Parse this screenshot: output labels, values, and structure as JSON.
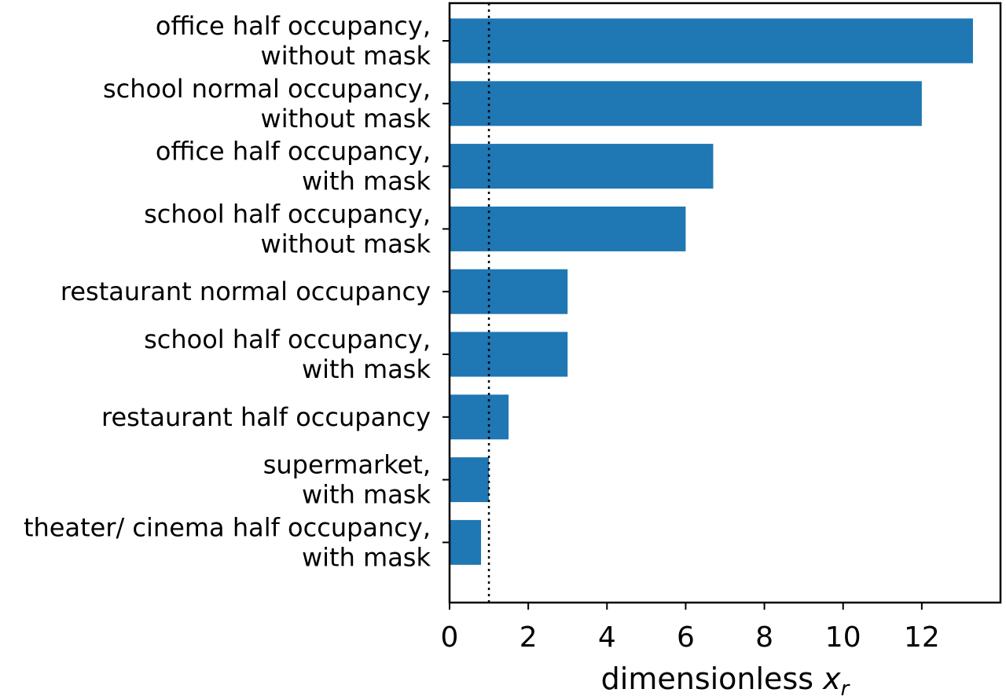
{
  "chart_data": {
    "type": "bar",
    "orientation": "horizontal",
    "categories": [
      [
        "office half occupancy,",
        "without mask"
      ],
      [
        "school normal occupancy,",
        "without mask"
      ],
      [
        "office half occupancy,",
        "with mask"
      ],
      [
        "school half occupancy,",
        "without mask"
      ],
      [
        "restaurant normal occupancy"
      ],
      [
        "school half occupancy,",
        "with mask"
      ],
      [
        "restaurant half occupancy"
      ],
      [
        "supermarket,",
        "with mask"
      ],
      [
        "theater/ cinema half occupancy,",
        "with mask"
      ]
    ],
    "values": [
      13.3,
      12.0,
      6.7,
      6.0,
      3.0,
      3.0,
      1.5,
      1.0,
      0.8
    ],
    "xlabel": "dimensionless ",
    "xlabel_var": "x",
    "xlabel_sub": "r",
    "xlim": [
      0,
      14
    ],
    "xticks": [
      0,
      2,
      4,
      6,
      8,
      10,
      12
    ],
    "reference_line": {
      "x": 1,
      "style": "dotted"
    },
    "bar_color": "#1f77b4",
    "grid": false
  }
}
